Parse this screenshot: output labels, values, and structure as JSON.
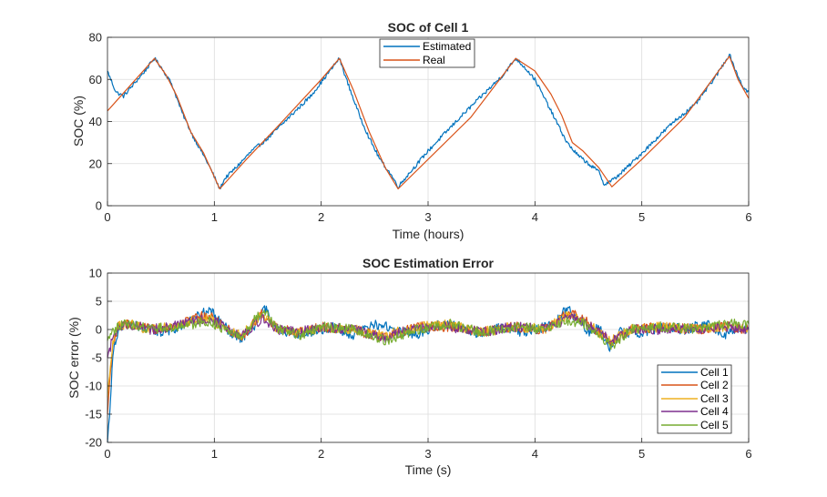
{
  "chart_data": [
    {
      "type": "line",
      "title": "SOC of Cell 1",
      "xlabel": "Time (hours)",
      "ylabel": "SOC (%)",
      "xlim": [
        0,
        6
      ],
      "ylim": [
        0,
        80
      ],
      "xticks": [
        0,
        1,
        2,
        3,
        4,
        5,
        6
      ],
      "yticks": [
        0,
        20,
        40,
        60,
        80
      ],
      "grid": true,
      "legend_position": "top-center",
      "series": [
        {
          "name": "Estimated",
          "color": "#0072bd",
          "x": [
            0,
            0.03,
            0.08,
            0.15,
            0.25,
            0.35,
            0.44,
            0.5,
            0.6,
            0.7,
            0.8,
            0.9,
            0.98,
            1.05,
            1.1,
            1.2,
            1.35,
            1.5,
            1.7,
            1.9,
            2.05,
            2.17,
            2.25,
            2.35,
            2.45,
            2.55,
            2.65,
            2.72,
            2.8,
            2.9,
            3.0,
            3.15,
            3.3,
            3.5,
            3.7,
            3.82,
            3.9,
            4.0,
            4.1,
            4.2,
            4.3,
            4.4,
            4.5,
            4.6,
            4.65,
            4.75,
            4.9,
            5.1,
            5.3,
            5.5,
            5.7,
            5.82,
            5.88,
            5.95,
            6.0
          ],
          "y": [
            64,
            60,
            54,
            52,
            58,
            64,
            70,
            66,
            58,
            44,
            33,
            24,
            16,
            8,
            13,
            18,
            26,
            32,
            42,
            52,
            62,
            70,
            58,
            44,
            32,
            22,
            15,
            9,
            14,
            20,
            26,
            34,
            42,
            52,
            62,
            70,
            66,
            60,
            50,
            40,
            30,
            24,
            20,
            16,
            10,
            13,
            20,
            30,
            40,
            48,
            62,
            72,
            64,
            56,
            54
          ]
        },
        {
          "name": "Real",
          "color": "#d95319",
          "x": [
            0,
            0.44,
            0.55,
            0.65,
            0.78,
            0.9,
            1.05,
            1.3,
            1.6,
            2.0,
            2.17,
            2.3,
            2.45,
            2.6,
            2.72,
            3.0,
            3.4,
            3.82,
            4.0,
            4.15,
            4.25,
            4.35,
            4.45,
            4.6,
            4.72,
            5.0,
            5.4,
            5.82,
            5.9,
            6.0
          ],
          "y": [
            45,
            70,
            62,
            52,
            35,
            25,
            8,
            22,
            38,
            60,
            70,
            55,
            35,
            18,
            8,
            22,
            42,
            70,
            64,
            53,
            43,
            30,
            26,
            18,
            9,
            22,
            42,
            71,
            60,
            51
          ]
        }
      ]
    },
    {
      "type": "line",
      "title": "SOC Estimation Error",
      "xlabel": "Time (s)",
      "ylabel": "SOC error (%)",
      "xlim": [
        0,
        6
      ],
      "ylim": [
        -20,
        10
      ],
      "xticks": [
        0,
        1,
        2,
        3,
        4,
        5,
        6
      ],
      "yticks": [
        -20,
        -15,
        -10,
        -5,
        0,
        5,
        10
      ],
      "grid": true,
      "legend_position": "bottom-right",
      "series": [
        {
          "name": "Cell 1",
          "color": "#0072bd",
          "x": [
            0,
            0.02,
            0.05,
            0.1,
            0.15,
            0.3,
            0.5,
            0.7,
            0.85,
            0.95,
            1.05,
            1.15,
            1.25,
            1.4,
            1.47,
            1.55,
            1.7,
            1.9,
            2.1,
            2.3,
            2.5,
            2.7,
            2.9,
            3.1,
            3.3,
            3.5,
            3.7,
            3.9,
            4.1,
            4.2,
            4.3,
            4.4,
            4.5,
            4.6,
            4.7,
            4.8,
            5.0,
            5.2,
            5.4,
            5.6,
            5.8,
            5.9,
            6.0
          ],
          "y": [
            -20,
            -15,
            -4,
            0,
            1,
            0.5,
            -0.5,
            0.5,
            2.5,
            3.5,
            1.5,
            -0.5,
            -1.5,
            1,
            4,
            0.5,
            -1,
            -0.5,
            0.5,
            -1,
            1,
            0,
            -1,
            1,
            0.5,
            -1,
            0.5,
            -0.5,
            0.5,
            1.5,
            4,
            1.5,
            -0.5,
            0.5,
            -3,
            -0.5,
            -0.5,
            0.5,
            0,
            1,
            -1,
            0.5,
            0
          ]
        },
        {
          "name": "Cell 2",
          "color": "#d95319",
          "x": [
            0,
            0.02,
            0.05,
            0.1,
            0.2,
            0.4,
            0.6,
            0.8,
            0.95,
            1.1,
            1.25,
            1.45,
            1.6,
            1.8,
            2.0,
            2.3,
            2.6,
            2.9,
            3.2,
            3.5,
            3.8,
            4.1,
            4.3,
            4.45,
            4.6,
            4.72,
            4.9,
            5.2,
            5.5,
            5.8,
            6.0
          ],
          "y": [
            -15,
            -10,
            -3,
            0.5,
            1,
            0,
            0.5,
            2,
            2.5,
            0.5,
            -1.5,
            3,
            0,
            -0.5,
            0.5,
            0,
            -1.5,
            0.5,
            0.5,
            -0.5,
            0.5,
            0,
            3,
            2,
            -0.5,
            -2.5,
            0,
            0.5,
            0,
            0.5,
            0
          ]
        },
        {
          "name": "Cell 3",
          "color": "#edb120",
          "x": [
            0,
            0.02,
            0.05,
            0.1,
            0.2,
            0.4,
            0.6,
            0.8,
            0.95,
            1.1,
            1.25,
            1.45,
            1.6,
            1.8,
            2.0,
            2.3,
            2.6,
            2.9,
            3.2,
            3.5,
            3.8,
            4.1,
            4.3,
            4.45,
            4.6,
            4.72,
            4.9,
            5.2,
            5.5,
            5.8,
            6.0
          ],
          "y": [
            -12,
            -8,
            -2,
            0.5,
            1,
            0,
            0.5,
            1.5,
            2,
            0,
            -1,
            2.5,
            0,
            -0.5,
            0.5,
            0,
            -1,
            0.5,
            1,
            -0.5,
            0.5,
            0,
            2.5,
            1.5,
            -0.5,
            -2,
            0,
            0.5,
            0,
            0.5,
            0
          ]
        },
        {
          "name": "Cell 4",
          "color": "#7e2f8e",
          "x": [
            0,
            0.02,
            0.05,
            0.1,
            0.2,
            0.4,
            0.6,
            0.8,
            0.95,
            1.1,
            1.25,
            1.45,
            1.6,
            1.8,
            2.0,
            2.3,
            2.6,
            2.9,
            3.2,
            3.5,
            3.8,
            4.1,
            4.3,
            4.45,
            4.6,
            4.72,
            4.9,
            5.2,
            5.5,
            5.8,
            6.0
          ],
          "y": [
            -5,
            -4,
            -1,
            0.5,
            1,
            0,
            0.5,
            1.5,
            2,
            0.5,
            -1,
            2,
            0,
            -0.5,
            0.5,
            0,
            -1.5,
            0.5,
            0.5,
            -0.5,
            0.5,
            0,
            2,
            1.5,
            -0.5,
            -2,
            0,
            0,
            0,
            0.5,
            0
          ]
        },
        {
          "name": "Cell 5",
          "color": "#77ac30",
          "x": [
            0,
            0.02,
            0.05,
            0.1,
            0.2,
            0.4,
            0.6,
            0.8,
            0.95,
            1.1,
            1.25,
            1.45,
            1.6,
            1.8,
            2.0,
            2.3,
            2.6,
            2.9,
            3.2,
            3.5,
            3.8,
            4.1,
            4.3,
            4.45,
            4.6,
            4.72,
            4.9,
            5.2,
            5.5,
            5.8,
            6.0
          ],
          "y": [
            -2,
            -1.5,
            -0.5,
            0.5,
            1,
            0,
            0.5,
            1,
            1.5,
            0,
            -1.5,
            3.5,
            0,
            -1,
            0.5,
            0,
            -2,
            0,
            1,
            -0.5,
            0.5,
            0,
            1.5,
            1,
            -1,
            -3,
            0,
            0.5,
            0,
            1,
            1
          ]
        }
      ]
    }
  ]
}
